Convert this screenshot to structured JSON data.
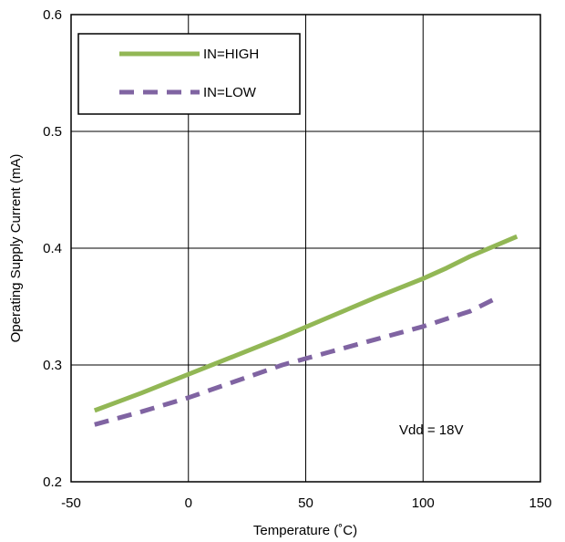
{
  "chart_data": {
    "type": "line",
    "title": "",
    "xlabel": "Temperature (˚C)",
    "ylabel": "Operating Supply Current (mA)",
    "xlim": [
      -50,
      150
    ],
    "ylim": [
      0.2,
      0.6
    ],
    "x_ticks": [
      -50,
      0,
      50,
      100,
      150
    ],
    "y_ticks": [
      0.2,
      0.3,
      0.4,
      0.5,
      0.6
    ],
    "x_tick_labels": [
      "-50",
      "0",
      "50",
      "100",
      "150"
    ],
    "y_tick_labels": [
      "0.2",
      "0.3",
      "0.4",
      "0.5",
      "0.6"
    ],
    "grid": true,
    "legend_position": "top-left",
    "annotation": "Vdd = 18V",
    "series": [
      {
        "name": "IN=HIGH",
        "style": "solid",
        "color": "#92B755",
        "x": [
          -40,
          -20,
          0,
          20,
          40,
          60,
          80,
          100,
          110,
          120,
          140
        ],
        "y": [
          0.261,
          0.276,
          0.292,
          0.308,
          0.324,
          0.341,
          0.358,
          0.374,
          0.383,
          0.393,
          0.41
        ]
      },
      {
        "name": "IN=LOW",
        "style": "dashed",
        "color": "#8064A2",
        "x": [
          -40,
          -20,
          0,
          20,
          40,
          60,
          80,
          100,
          120,
          130
        ],
        "y": [
          0.249,
          0.26,
          0.272,
          0.286,
          0.3,
          0.311,
          0.322,
          0.333,
          0.346,
          0.356
        ]
      }
    ]
  }
}
